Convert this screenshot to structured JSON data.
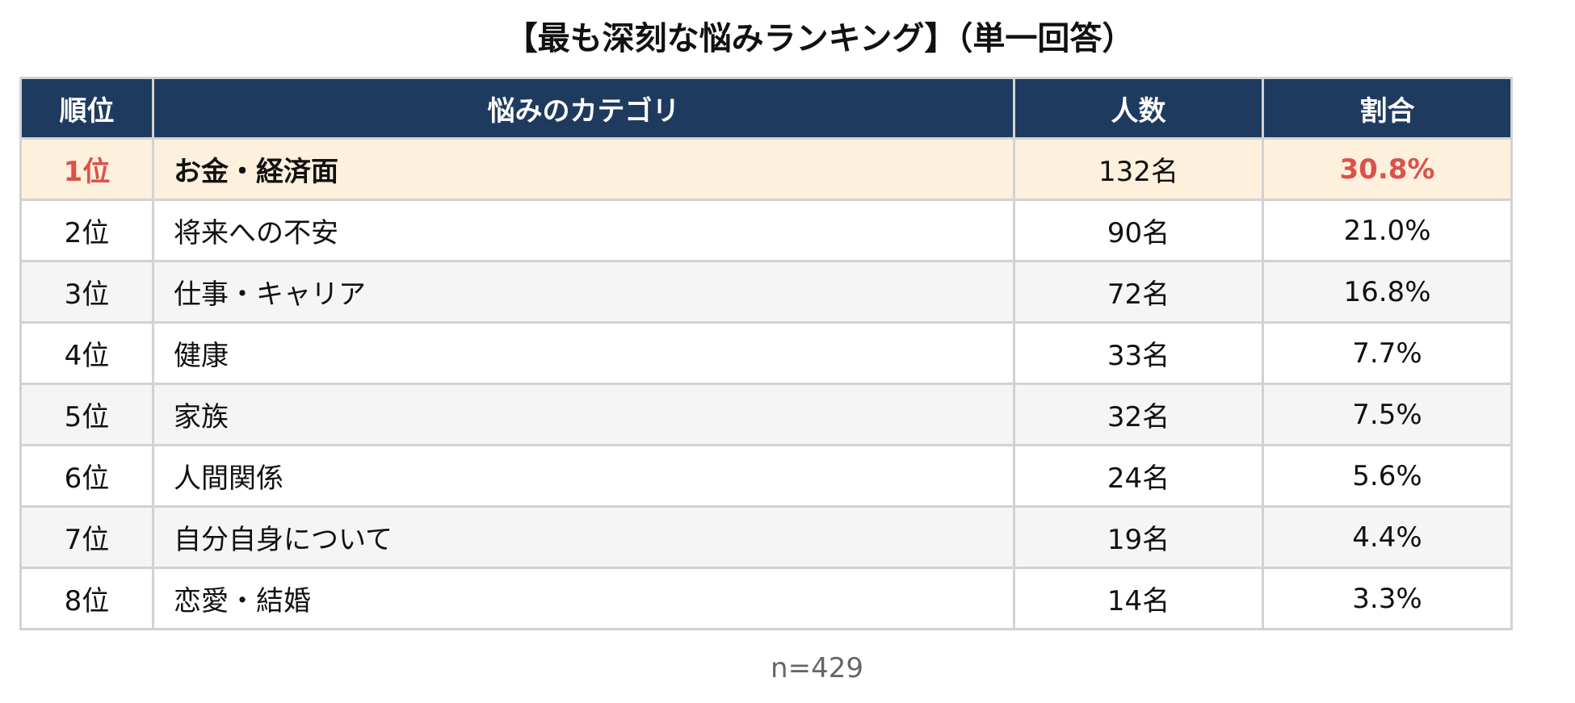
{
  "title": "【最も深刻な悩みランキング】（単一回答）",
  "table": {
    "headers": {
      "rank": "順位",
      "category": "悩みのカテゴリ",
      "count": "人数",
      "percent": "割合"
    },
    "rows": [
      {
        "rank": "1位",
        "category": "お金・経済面",
        "count": "132名",
        "percent": "30.8%"
      },
      {
        "rank": "2位",
        "category": "将来への不安",
        "count": "90名",
        "percent": "21.0%"
      },
      {
        "rank": "3位",
        "category": "仕事・キャリア",
        "count": "72名",
        "percent": "16.8%"
      },
      {
        "rank": "4位",
        "category": "健康",
        "count": "33名",
        "percent": "7.7%"
      },
      {
        "rank": "5位",
        "category": "家族",
        "count": "32名",
        "percent": "7.5%"
      },
      {
        "rank": "6位",
        "category": "人間関係",
        "count": "24名",
        "percent": "5.6%"
      },
      {
        "rank": "7位",
        "category": "自分自身について",
        "count": "19名",
        "percent": "4.4%"
      },
      {
        "rank": "8位",
        "category": "恋愛・結婚",
        "count": "14名",
        "percent": "3.3%"
      }
    ]
  },
  "footnote": "n=429",
  "colors": {
    "header_bg": "#1f3a5f",
    "header_text": "#ffffff",
    "highlight_row_bg": "#fdf0dd",
    "highlight_text": "#d9534a",
    "alt_row_bg": "#f5f5f5",
    "border": "#d2d2d2",
    "footnote_text": "#666666"
  }
}
